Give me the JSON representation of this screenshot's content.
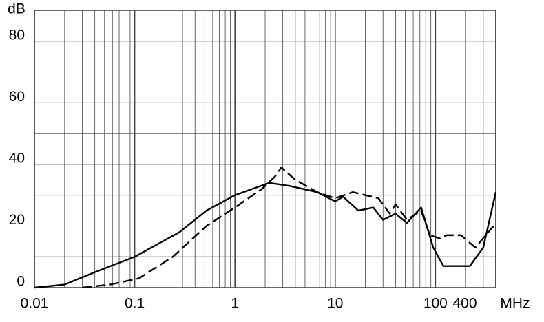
{
  "chart_data": {
    "type": "line",
    "x_label": "MHz",
    "y_label": "dB",
    "xscale": "log",
    "xlim": [
      0.01,
      400
    ],
    "xticks": [
      0.01,
      0.1,
      1,
      10,
      100,
      400
    ],
    "ylim": [
      0,
      90
    ],
    "yticks": [
      0,
      20,
      40,
      60,
      80
    ],
    "ygrid": [
      0,
      10,
      20,
      30,
      40,
      50,
      60,
      70,
      80,
      90
    ],
    "grid": true,
    "minor_grid": true,
    "series": [
      {
        "color": "#000000",
        "dash": false,
        "x": [
          0.01,
          0.02,
          0.04,
          0.1,
          0.28,
          0.52,
          1,
          2.2,
          3.5,
          6.6,
          10,
          12,
          17,
          24,
          30,
          40,
          52,
          72,
          95,
          120,
          160,
          220,
          300,
          400
        ],
        "values": [
          0,
          1,
          5,
          10,
          18,
          25,
          30,
          34,
          33,
          31,
          28,
          29.5,
          25,
          26,
          22,
          24,
          21,
          26,
          13,
          7,
          7,
          7,
          13,
          31
        ]
      },
      {
        "color": "#000000",
        "dash": true,
        "x": [
          0.03,
          0.057,
          0.11,
          0.24,
          0.52,
          1,
          1.85,
          2.5,
          2.9,
          4,
          6.6,
          10,
          15,
          20,
          27,
          35,
          40,
          52,
          72,
          88,
          110,
          130,
          180,
          250,
          380
        ],
        "values": [
          0,
          1,
          3,
          10,
          20,
          26,
          32,
          36,
          39,
          35,
          31,
          29,
          31,
          30,
          29,
          24,
          27,
          22,
          25,
          17,
          16,
          17,
          17,
          13,
          20
        ]
      }
    ]
  }
}
